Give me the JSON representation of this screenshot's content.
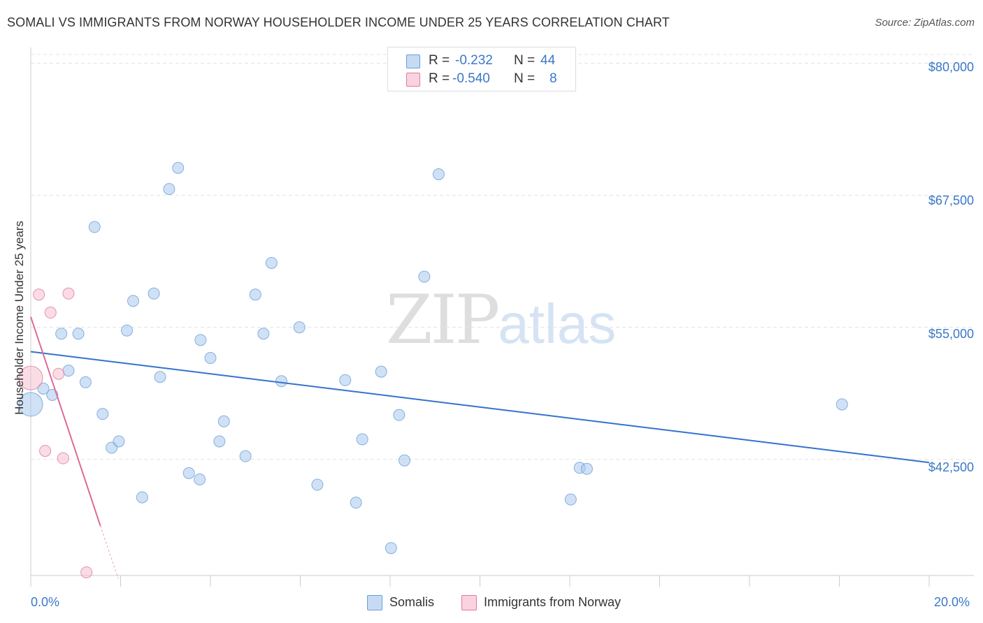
{
  "title": "SOMALI VS IMMIGRANTS FROM NORWAY HOUSEHOLDER INCOME UNDER 25 YEARS CORRELATION CHART",
  "source": "Source: ZipAtlas.com",
  "watermark": {
    "zip": "ZIP",
    "atlas": "atlas"
  },
  "legend_top": [
    {
      "r_label": "R =",
      "r_value": "-0.232",
      "n_label": "N =",
      "n_value": "44",
      "color": "#a9c9ef"
    },
    {
      "r_label": "R =",
      "r_value": "-0.540",
      "n_label": "N =",
      "n_value": "8",
      "color": "#f6bfd0"
    }
  ],
  "legend_bottom": [
    {
      "label": "Somalis",
      "color": "#a9c9ef"
    },
    {
      "label": "Immigrants from Norway",
      "color": "#f6bfd0"
    }
  ],
  "chart_data": {
    "type": "scatter",
    "title": "SOMALI VS IMMIGRANTS FROM NORWAY HOUSEHOLDER INCOME UNDER 25 YEARS CORRELATION CHART",
    "xlabel": "",
    "ylabel": "Householder Income Under 25 years",
    "xlim": [
      0,
      20
    ],
    "ylim": [
      31500,
      81500
    ],
    "x_tick_labels": [
      "0.0%",
      "20.0%"
    ],
    "y_ticks": [
      42500,
      55000,
      67500,
      80000
    ],
    "y_tick_labels": [
      "$42,500",
      "$55,000",
      "$67,500",
      "$80,000"
    ],
    "series": [
      {
        "name": "Somalis",
        "color": "#a9c9ef",
        "stroke": "#6a9fd8",
        "points": [
          {
            "x": 0.0,
            "y": 47700,
            "big": true
          },
          {
            "x": 0.28,
            "y": 49200
          },
          {
            "x": 0.48,
            "y": 48600
          },
          {
            "x": 0.68,
            "y": 54400
          },
          {
            "x": 0.84,
            "y": 50900
          },
          {
            "x": 1.06,
            "y": 54400
          },
          {
            "x": 1.22,
            "y": 49800
          },
          {
            "x": 1.42,
            "y": 64500
          },
          {
            "x": 1.6,
            "y": 46800
          },
          {
            "x": 1.8,
            "y": 43600
          },
          {
            "x": 1.96,
            "y": 44200
          },
          {
            "x": 2.14,
            "y": 54700
          },
          {
            "x": 2.28,
            "y": 57500
          },
          {
            "x": 2.48,
            "y": 38900
          },
          {
            "x": 2.74,
            "y": 58200
          },
          {
            "x": 2.88,
            "y": 50300
          },
          {
            "x": 3.08,
            "y": 68100
          },
          {
            "x": 3.28,
            "y": 70100
          },
          {
            "x": 3.52,
            "y": 41200
          },
          {
            "x": 3.76,
            "y": 40600
          },
          {
            "x": 3.78,
            "y": 53800
          },
          {
            "x": 4.0,
            "y": 52100
          },
          {
            "x": 4.2,
            "y": 44200
          },
          {
            "x": 4.3,
            "y": 46100
          },
          {
            "x": 4.78,
            "y": 42800
          },
          {
            "x": 5.0,
            "y": 58100
          },
          {
            "x": 5.18,
            "y": 54400
          },
          {
            "x": 5.36,
            "y": 61100
          },
          {
            "x": 5.58,
            "y": 49900
          },
          {
            "x": 5.98,
            "y": 55000
          },
          {
            "x": 6.38,
            "y": 40100
          },
          {
            "x": 7.0,
            "y": 50000
          },
          {
            "x": 7.24,
            "y": 38400
          },
          {
            "x": 7.38,
            "y": 44400
          },
          {
            "x": 7.8,
            "y": 50800
          },
          {
            "x": 8.02,
            "y": 34100
          },
          {
            "x": 8.2,
            "y": 46700
          },
          {
            "x": 8.32,
            "y": 42400
          },
          {
            "x": 8.76,
            "y": 59800
          },
          {
            "x": 9.08,
            "y": 69500
          },
          {
            "x": 12.02,
            "y": 38700
          },
          {
            "x": 12.22,
            "y": 41700
          },
          {
            "x": 12.38,
            "y": 41600
          },
          {
            "x": 18.06,
            "y": 47700
          }
        ]
      },
      {
        "name": "Immigrants from Norway",
        "color": "#f6bfd0",
        "stroke": "#e07a9c",
        "points": [
          {
            "x": 0.0,
            "y": 50200,
            "big": true
          },
          {
            "x": 0.18,
            "y": 58100
          },
          {
            "x": 0.44,
            "y": 56400
          },
          {
            "x": 0.32,
            "y": 43300
          },
          {
            "x": 0.62,
            "y": 50600
          },
          {
            "x": 0.72,
            "y": 42600
          },
          {
            "x": 0.84,
            "y": 58200
          },
          {
            "x": 1.24,
            "y": 31800
          }
        ]
      }
    ],
    "trendlines": [
      {
        "series": "Somalis",
        "x0": 0.0,
        "y0": 52700,
        "x1": 20.0,
        "y1": 42200,
        "dashed_extension": false
      },
      {
        "series": "Immigrants from Norway",
        "x0": 0.0,
        "y0": 56000,
        "x1": 1.55,
        "y1": 36200,
        "dash_to_x": 1.95,
        "dash_to_y": 31200
      }
    ]
  }
}
